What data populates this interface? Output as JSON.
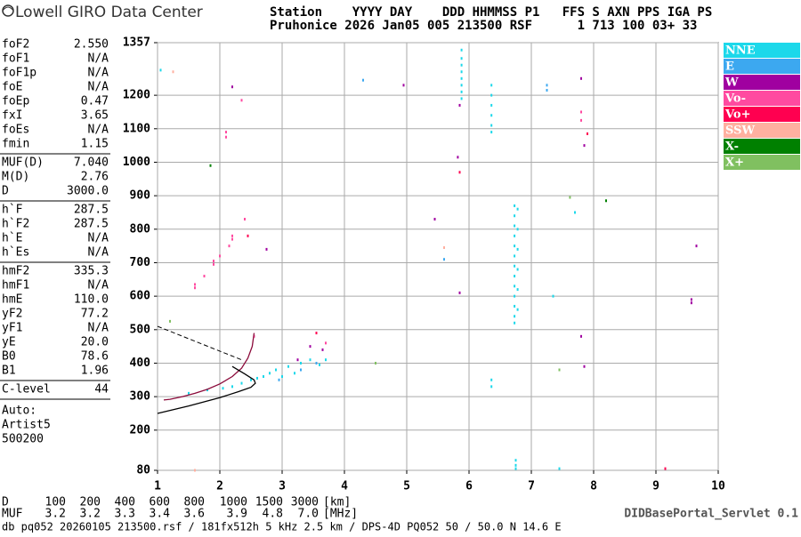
{
  "logo": "Lowell GIRO Data Center",
  "header": {
    "line1": "Station    YYYY DAY    DDD HHMMSS P1   FFS S AXN PPS IGA PS",
    "line2": "Pruhonice 2026 Jan05 005 213500 RSF      1 713 100 03+ 33"
  },
  "params": [
    [
      {
        "name": "foF2",
        "value": "2.550"
      },
      {
        "name": "foF1",
        "value": "N/A"
      },
      {
        "name": "foF1p",
        "value": "N/A"
      },
      {
        "name": "foE",
        "value": "N/A"
      },
      {
        "name": "foEp",
        "value": "0.47"
      },
      {
        "name": "fxI",
        "value": "3.65"
      },
      {
        "name": "foEs",
        "value": "N/A"
      },
      {
        "name": "fmin",
        "value": "1.15"
      }
    ],
    [
      {
        "name": "MUF(D)",
        "value": "7.040"
      },
      {
        "name": "M(D)",
        "value": "2.76"
      },
      {
        "name": "D",
        "value": "3000.0"
      }
    ],
    [
      {
        "name": "h`F",
        "value": "287.5"
      },
      {
        "name": "h`F2",
        "value": "287.5"
      },
      {
        "name": "h`E",
        "value": "N/A"
      },
      {
        "name": "h`Es",
        "value": "N/A"
      }
    ],
    [
      {
        "name": "hmF2",
        "value": "335.3"
      },
      {
        "name": "hmF1",
        "value": "N/A"
      },
      {
        "name": "hmE",
        "value": "110.0"
      },
      {
        "name": "yF2",
        "value": "77.2"
      },
      {
        "name": "yF1",
        "value": "N/A"
      },
      {
        "name": "yE",
        "value": "20.0"
      },
      {
        "name": "B0",
        "value": "78.6"
      },
      {
        "name": "B1",
        "value": "1.96"
      }
    ],
    [
      {
        "name": "C-level",
        "value": "44"
      }
    ]
  ],
  "notes": [
    "Auto:",
    "Artist5",
    "500200"
  ],
  "muf_table": {
    "d_label": "D",
    "d": [
      "100",
      "200",
      "400",
      "600",
      "800",
      "1000",
      "1500",
      "3000"
    ],
    "d_unit": "[km]",
    "muf_label": "MUF",
    "muf": [
      "3.2",
      "3.2",
      "3.3",
      "3.4",
      "3.6",
      "3.9",
      "4.8",
      "7.0"
    ],
    "muf_unit": "[MHz]"
  },
  "servlet": "DIDBasePortal_Servlet 0.1",
  "footer": "db pq052 20260105 213500.rsf / 181fx512h 5 kHz 2.5 km / DPS-4D PQ052 50 / 50.0 N 14.6 E",
  "chart_data": {
    "type": "scatter",
    "xlim": [
      1,
      10
    ],
    "xticks": [
      1,
      2,
      3,
      4,
      5,
      6,
      7,
      8,
      9,
      10
    ],
    "ylim": [
      80,
      1357
    ],
    "yticks": [
      80,
      200,
      300,
      400,
      500,
      600,
      700,
      800,
      900,
      1000,
      1100,
      1200,
      1357
    ],
    "grid": true,
    "legend": "right",
    "series": [
      {
        "name": "NNE",
        "color": "#1cd8ea",
        "x": [
          5.88,
          5.88,
          5.88,
          5.88,
          5.88,
          5.88,
          5.88,
          5.88,
          6.36,
          6.36,
          6.36,
          6.36,
          6.36,
          6.36,
          6.73,
          6.73,
          6.73,
          6.73,
          6.73,
          6.73,
          6.73,
          6.73,
          6.73,
          6.73,
          6.73,
          6.73,
          6.73,
          6.78,
          6.78,
          6.78,
          6.78,
          6.78,
          6.78,
          6.36,
          6.36,
          6.75,
          6.75,
          6.75,
          7.45,
          2.2,
          2.35,
          2.5,
          2.6,
          2.7,
          2.8,
          2.9,
          3.0,
          3.1,
          3.2,
          3.3,
          3.45,
          3.6,
          3.7,
          1.5,
          1.8,
          2.05,
          7.35,
          7.7,
          1.05
        ],
        "y": [
          1335,
          1310,
          1290,
          1270,
          1250,
          1230,
          1210,
          1190,
          1230,
          1200,
          1170,
          1140,
          1110,
          1090,
          870,
          840,
          810,
          780,
          750,
          720,
          690,
          660,
          630,
          600,
          570,
          540,
          520,
          860,
          800,
          740,
          680,
          620,
          560,
          350,
          330,
          110,
          95,
          85,
          85,
          330,
          340,
          350,
          355,
          360,
          370,
          380,
          360,
          390,
          370,
          400,
          410,
          395,
          410,
          310,
          320,
          325,
          600,
          850,
          1275
        ]
      },
      {
        "name": "E",
        "color": "#3ca8f0",
        "x": [
          7.25,
          7.25,
          5.6,
          3.3,
          2.95,
          3.55,
          4.3
        ],
        "y": [
          1215,
          1230,
          710,
          380,
          350,
          400,
          1245
        ]
      },
      {
        "name": "W",
        "color": "#a000a0",
        "x": [
          2.75,
          5.85,
          5.82,
          5.85,
          7.8,
          7.85,
          9.57,
          9.57,
          9.65,
          7.8,
          7.85,
          3.25,
          3.45,
          3.65,
          4.95,
          2.2,
          5.45
        ],
        "y": [
          740,
          1170,
          1015,
          610,
          1250,
          1050,
          590,
          580,
          750,
          480,
          390,
          410,
          450,
          440,
          1230,
          1225,
          830
        ]
      },
      {
        "name": "Vo-",
        "color": "#ff4aa0",
        "x": [
          1.6,
          1.6,
          1.75,
          1.9,
          1.9,
          2.0,
          2.15,
          2.2,
          2.2,
          2.4,
          2.55,
          2.35,
          2.1,
          2.1,
          7.8,
          7.8,
          3.7
        ],
        "y": [
          625,
          635,
          660,
          695,
          705,
          720,
          750,
          770,
          780,
          830,
          480,
          1185,
          1090,
          1075,
          1125,
          1150,
          460
        ]
      },
      {
        "name": "Vo+",
        "color": "#ff0050",
        "x": [
          2.45,
          5.85,
          7.9,
          9.15,
          3.55
        ],
        "y": [
          780,
          970,
          1085,
          85,
          490
        ]
      },
      {
        "name": "SSW",
        "color": "#ffb0a0",
        "x": [
          1.25,
          1.6,
          5.6
        ],
        "y": [
          1270,
          80,
          745
        ]
      },
      {
        "name": "X-",
        "color": "#008000",
        "x": [
          1.85,
          8.2
        ],
        "y": [
          990,
          885
        ]
      },
      {
        "name": "X+",
        "color": "#80c060",
        "x": [
          1.2,
          7.45,
          7.62,
          4.5
        ],
        "y": [
          525,
          380,
          895,
          400
        ]
      }
    ],
    "traces": [
      {
        "color": "#8b0a3a",
        "dash": false,
        "x": [
          1.1,
          1.2,
          1.4,
          1.6,
          1.8,
          2.0,
          2.2,
          2.35,
          2.45,
          2.52,
          2.55
        ],
        "y": [
          290,
          292,
          300,
          310,
          322,
          338,
          360,
          385,
          415,
          450,
          490
        ]
      },
      {
        "color": "#000000",
        "dash": false,
        "x": [
          1.0,
          1.5,
          2.0,
          2.3,
          2.5,
          2.57,
          2.55,
          2.4,
          2.2
        ],
        "y": [
          250,
          272,
          297,
          315,
          328,
          340,
          350,
          368,
          390
        ]
      },
      {
        "color": "#000000",
        "dash": true,
        "x": [
          1.0,
          2.35
        ],
        "y": [
          510,
          410
        ]
      }
    ]
  }
}
